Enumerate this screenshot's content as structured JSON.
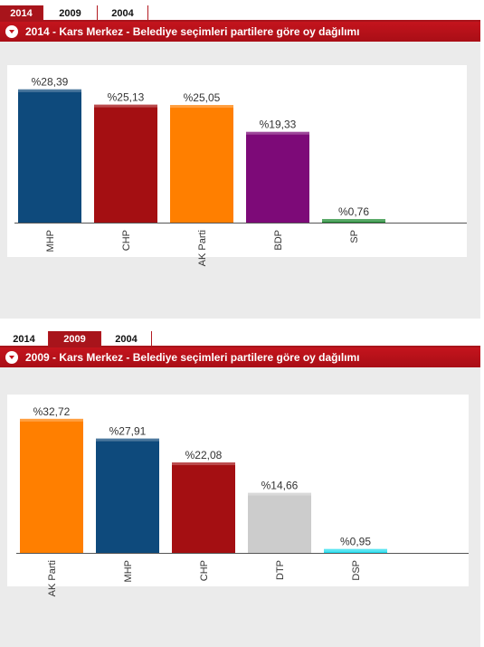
{
  "tabs": [
    "2014",
    "2009",
    "2004"
  ],
  "charts": [
    {
      "active_tab": 0,
      "header": "2014 - Kars Merkez - Belediye seçimleri partilere göre oy dağılımı"
    },
    {
      "active_tab": 1,
      "header": "2009 - Kars Merkez - Belediye seçimleri partilere göre oy dağılımı"
    }
  ],
  "chart_data": [
    {
      "type": "bar",
      "title": "2014 - Kars Merkez - Belediye seçimleri partilere göre oy dağılımı",
      "categories": [
        "MHP",
        "CHP",
        "AK Parti",
        "BDP",
        "SP"
      ],
      "values": [
        28.39,
        25.13,
        25.05,
        19.33,
        0.76
      ],
      "labels": [
        "%28,39",
        "%25,13",
        "%25,05",
        "%19,33",
        "%0,76"
      ],
      "colors": [
        "#0e4a7c",
        "#a40f12",
        "#ff7f00",
        "#7d0a78",
        "#1e8a32"
      ],
      "ylim": [
        0,
        32
      ]
    },
    {
      "type": "bar",
      "title": "2009 - Kars Merkez - Belediye seçimleri partilere göre oy dağılımı",
      "categories": [
        "AK Parti",
        "MHP",
        "CHP",
        "DTP",
        "DSP"
      ],
      "values": [
        32.72,
        27.91,
        22.08,
        14.66,
        0.95
      ],
      "labels": [
        "%32,72",
        "%27,91",
        "%22,08",
        "%14,66",
        "%0,95"
      ],
      "colors": [
        "#ff7f00",
        "#0e4a7c",
        "#a40f12",
        "#cccccc",
        "#22ddee"
      ],
      "ylim": [
        0,
        36
      ]
    }
  ]
}
